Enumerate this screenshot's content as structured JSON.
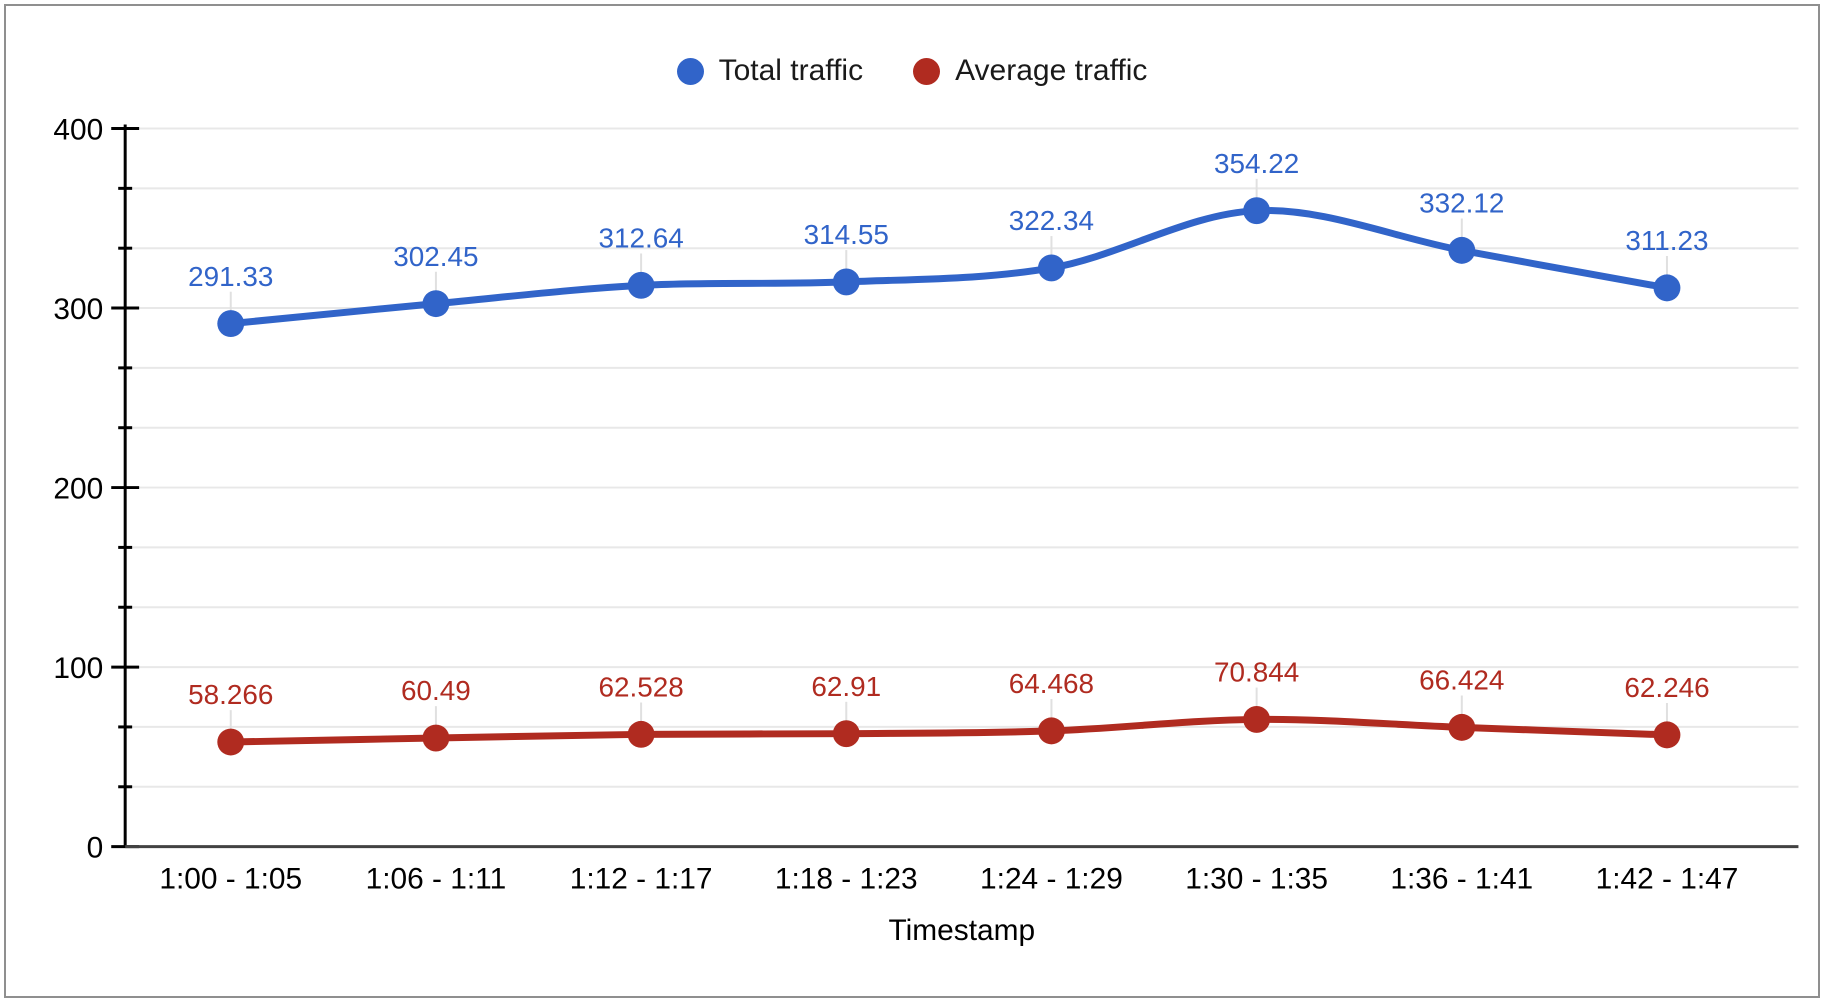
{
  "legend": {
    "items": [
      {
        "label": "Total traffic",
        "color": "#3164c9"
      },
      {
        "label": "Average traffic",
        "color": "#b02b20"
      }
    ]
  },
  "chart_data": {
    "type": "line",
    "smooth": true,
    "grid": true,
    "legend_position": "top",
    "xlabel": "Timestamp",
    "ylabel": "",
    "ylim": [
      0,
      400
    ],
    "yticks": [
      "0",
      "100",
      "200",
      "300",
      "400"
    ],
    "ytick_values": [
      0,
      100,
      200,
      300,
      400
    ],
    "minor_gridlines_per_major": 3,
    "categories": [
      "1:00 - 1:05",
      "1:06 - 1:11",
      "1:12 - 1:17",
      "1:18 - 1:23",
      "1:24 - 1:29",
      "1:30 - 1:35",
      "1:36 - 1:41",
      "1:42 - 1:47"
    ],
    "series": [
      {
        "name": "Total traffic",
        "color": "#3164c9",
        "values": [
          291.33,
          302.45,
          312.64,
          314.55,
          322.34,
          354.22,
          332.12,
          311.23
        ],
        "point_labels": [
          "291.33",
          "302.45",
          "312.64",
          "314.55",
          "322.34",
          "354.22",
          "332.12",
          "311.23"
        ]
      },
      {
        "name": "Average traffic",
        "color": "#b02b20",
        "values": [
          58.266,
          60.49,
          62.528,
          62.91,
          64.468,
          70.844,
          66.424,
          62.246
        ],
        "point_labels": [
          "58.266",
          "60.49",
          "62.528",
          "62.91",
          "64.468",
          "70.844",
          "66.424",
          "62.246"
        ]
      }
    ],
    "colors": {
      "gridline": "#e8e8e8",
      "leader_line": "#e0e0e0",
      "axis_line": "#000000",
      "x_baseline": "#424242",
      "tick_label": "#000000",
      "frame_border": "#8f8f8f"
    }
  }
}
